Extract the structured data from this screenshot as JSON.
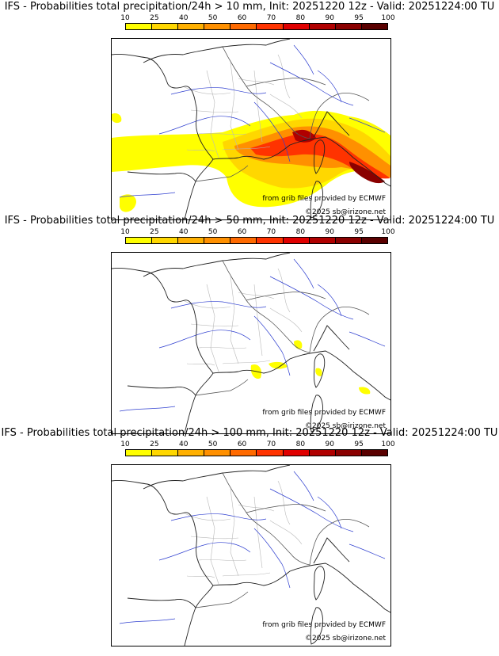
{
  "legend": {
    "ticks": [
      "10",
      "25",
      "40",
      "50",
      "60",
      "70",
      "80",
      "90",
      "95",
      "100"
    ],
    "colors": [
      "#ffff00",
      "#ffd700",
      "#ffb000",
      "#ff9000",
      "#ff6a00",
      "#ff3300",
      "#e00000",
      "#b00000",
      "#8a0000",
      "#5a0000"
    ]
  },
  "panels": [
    {
      "title": "IFS - Probabilities total precipitation/24h > 10 mm, Init: 20251220 12z - Valid: 20251224:00 TU",
      "credit_source": "from grib files provided by ECMWF",
      "credit_copyright": "©2025 sb@irizone.net"
    },
    {
      "title": "IFS - Probabilities total precipitation/24h > 50 mm, Init: 20251220 12z - Valid: 20251224:00 TU",
      "credit_source": "from grib files provided by ECMWF",
      "credit_copyright": "©2025 sb@irizone.net"
    },
    {
      "title": "IFS - Probabilities total precipitation/24h > 100 mm, Init: 20251220 12z - Valid: 20251224:00 TU",
      "credit_source": "from grib files provided by ECMWF",
      "credit_copyright": "©2025 sb@irizone.net"
    }
  ]
}
